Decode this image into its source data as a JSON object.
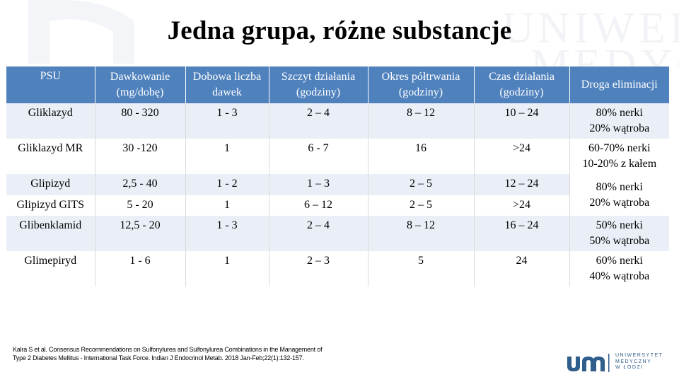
{
  "title": "Jedna grupa, różne substancje",
  "table": {
    "headers": [
      "PSU",
      "Dawkowanie (mg/dobę)",
      "Dobowa liczba dawek",
      "Szczyt działania (godziny)",
      "Okres półtrwania (godziny)",
      "Czas działania (godziny)",
      "Droga eliminacji"
    ],
    "rows": [
      {
        "psu": "Gliklazyd",
        "dose": "80 - 320",
        "daily": "1 - 3",
        "peak": "2 – 4",
        "half": "8 – 12",
        "duration": "10 – 24"
      },
      {
        "psu": "Gliklazyd MR",
        "dose": "30 -120",
        "daily": "1",
        "peak": "6 - 7",
        "half": "16",
        "duration": ">24"
      },
      {
        "psu": "Glipizyd",
        "dose": "2,5 - 40",
        "daily": "1 - 2",
        "peak": "1 – 3",
        "half": "2 – 5",
        "duration": "12 – 24"
      },
      {
        "psu": "Glipizyd GITS",
        "dose": "5 - 20",
        "daily": "1",
        "peak": "6 – 12",
        "half": "2 – 5",
        "duration": ">24"
      },
      {
        "psu": "Glibenklamid",
        "dose": "12,5 - 20",
        "daily": "1 - 3",
        "peak": "2 – 4",
        "half": "8 – 12",
        "duration": "16 – 24"
      },
      {
        "psu": "Glimepiryd",
        "dose": "1 - 6",
        "daily": "1",
        "peak": "2 – 3",
        "half": "5",
        "duration": "24"
      }
    ],
    "elimination": [
      {
        "line1": "80% nerki",
        "line2": "20% wątroba"
      },
      {
        "line1": "60-70% nerki",
        "line2": "10-20% z kałem"
      },
      {
        "line1": "80% nerki",
        "line2": "20% wątroba"
      },
      {
        "line1": "50% nerki",
        "line2": "50% wątroba"
      },
      {
        "line1": "60% nerki",
        "line2": "40% wątroba"
      }
    ]
  },
  "reference": {
    "line1": "Kalra S et al. Consensus Recommendations on Sulfonylurea and Sulfonylurea Combinations in the Management of",
    "line2": "Type 2 Diabetes Mellitus - International Task Force. Indian J Endocrinol Metab. 2018 Jan-Feb;22(1):132-157."
  },
  "logo": {
    "line1": "UNIWERSYTET",
    "line2": "MEDYCZNY",
    "line3": "W ŁODZI"
  },
  "colors": {
    "header_bg": "#4f81bd",
    "band_bg": "#eaeff7",
    "logo_blue": "#2f5d8c"
  }
}
